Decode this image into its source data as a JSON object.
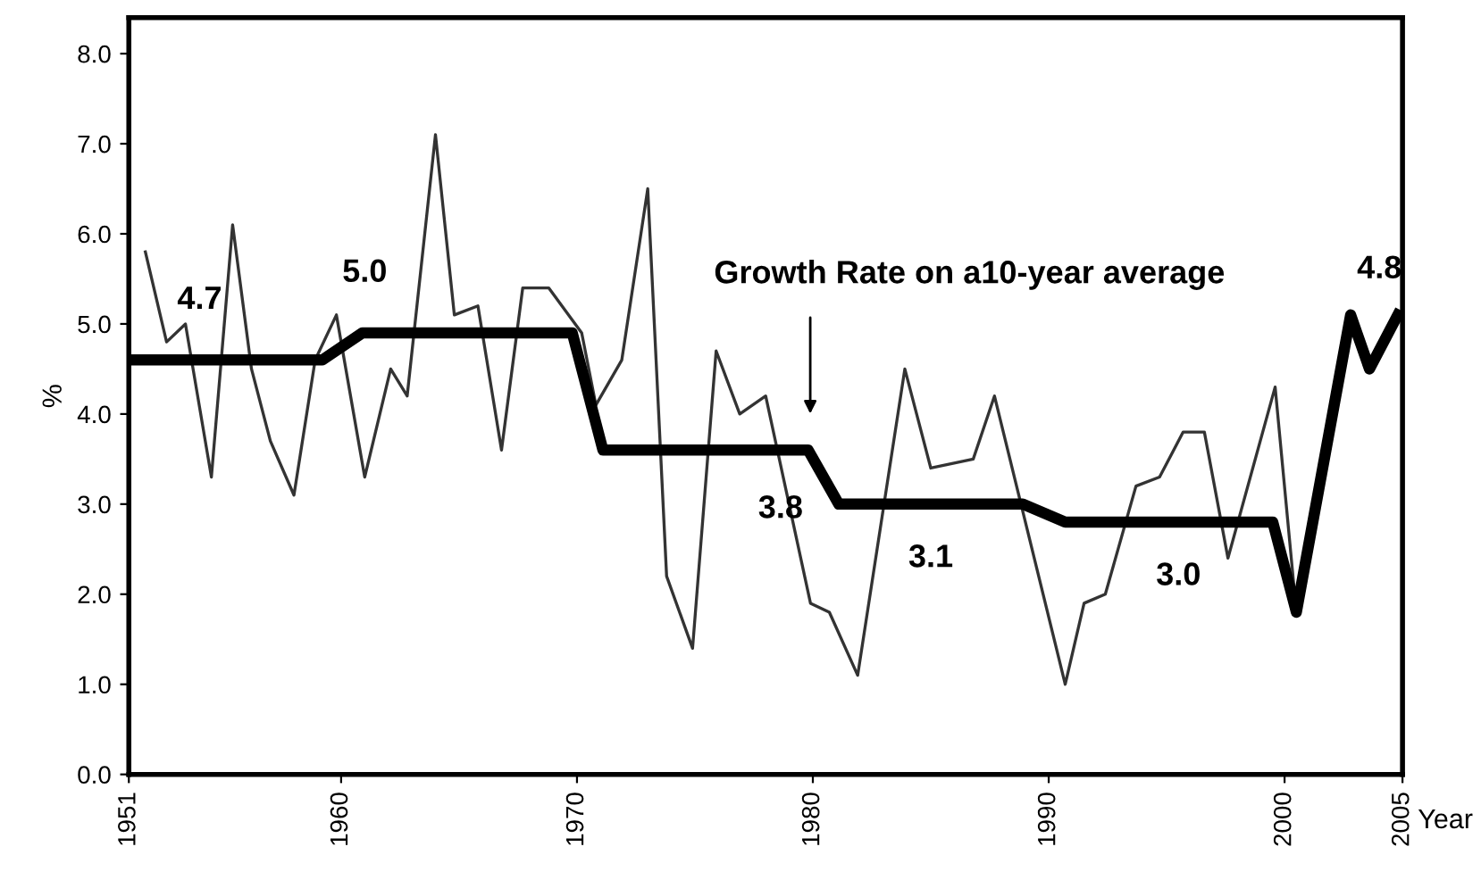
{
  "chart_data": {
    "type": "line",
    "xlabel": "Year",
    "ylabel": "%",
    "xlim": [
      1951,
      2005
    ],
    "xticks": [
      1951,
      1960,
      1970,
      1980,
      1990,
      2000,
      2005
    ],
    "ylim": [
      0,
      8.4
    ],
    "yticks": [
      {
        "value": 0,
        "label": "0.0"
      },
      {
        "value": 1,
        "label": "1.0"
      },
      {
        "value": 2,
        "label": "2.0"
      },
      {
        "value": 3,
        "label": "3.0"
      },
      {
        "value": 4,
        "label": "4.0"
      },
      {
        "value": 5,
        "label": "5.0"
      },
      {
        "value": 6,
        "label": "6.0"
      },
      {
        "value": 7,
        "label": "7.0"
      },
      {
        "value": 8,
        "label": "8.0"
      }
    ],
    "grid": false,
    "legend": false,
    "marker": "none",
    "line_style": "solid",
    "series": [
      {
        "color": "#333333",
        "x": [
          1951.7,
          1952.6,
          1953.4,
          1954.5,
          1955.4,
          1956.2,
          1957.0,
          1958.0,
          1958.9,
          1959.8,
          1961.0,
          1962.1,
          1962.8,
          1964.0,
          1964.8,
          1965.8,
          1966.8,
          1967.7,
          1968.8,
          1970.2,
          1970.8,
          1971.9,
          1973.0,
          1973.8,
          1974.9,
          1975.9,
          1976.9,
          1978.0,
          1979.9,
          1980.7,
          1981.9,
          1983.9,
          1985.0,
          1986.8,
          1987.7,
          1990.7,
          1991.5,
          1992.4,
          1993.7,
          1994.7,
          1995.7,
          1996.6,
          1997.6,
          1999.6,
          2000.5
        ],
        "values": [
          5.8,
          4.8,
          5.0,
          3.3,
          6.1,
          4.5,
          3.7,
          3.1,
          4.6,
          5.1,
          3.3,
          4.5,
          4.2,
          7.1,
          5.1,
          5.2,
          3.6,
          5.4,
          5.4,
          4.9,
          4.1,
          4.6,
          6.5,
          2.2,
          1.4,
          4.7,
          4.0,
          4.2,
          1.9,
          1.8,
          1.1,
          4.5,
          3.4,
          3.5,
          4.2,
          1.0,
          1.9,
          2.0,
          3.2,
          3.3,
          3.8,
          3.8,
          2.4,
          4.3,
          1.8
        ]
      },
      {
        "color": "#000000",
        "x": [
          1951,
          1959.2,
          1960.9,
          1969.8,
          1971.1,
          1979.8,
          1981.1,
          1988.9,
          1990.7,
          1999.5,
          2000.5,
          2002.8,
          2003.6,
          2004.8
        ],
        "values": [
          4.6,
          4.6,
          4.9,
          4.9,
          3.6,
          3.6,
          3.0,
          3.0,
          2.8,
          2.8,
          1.8,
          5.1,
          4.5,
          5.1
        ]
      }
    ],
    "annotations": [
      {
        "text": "4.7",
        "x": 1954,
        "y": 4.6
      },
      {
        "text": "5.0",
        "x": 1961,
        "y": 4.9
      },
      {
        "text": "3.8",
        "x": 1978,
        "y": 3.6
      },
      {
        "text": "3.1",
        "x": 1985,
        "y": 3.0
      },
      {
        "text": "3.0",
        "x": 1995.5,
        "y": 2.8
      },
      {
        "text": "4.8",
        "x": 2003.6,
        "y": 4.5
      },
      "Growth Rate on a10-year average"
    ]
  }
}
